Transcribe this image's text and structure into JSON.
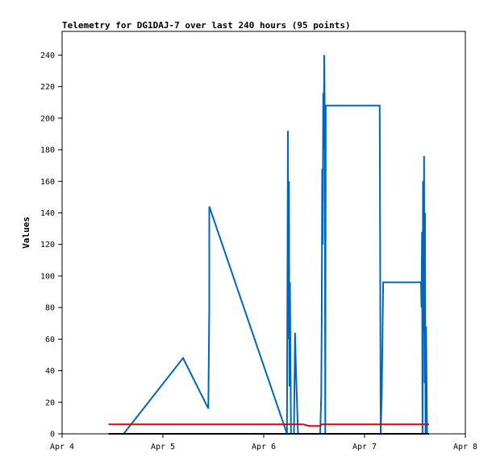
{
  "chart_data": {
    "type": "line",
    "title": "Telemetry for DG1DAJ-7 over last 240 hours (95 points)",
    "xlabel": "",
    "ylabel": "Values",
    "xlim": [
      0,
      4
    ],
    "ylim": [
      0,
      255
    ],
    "x_ticks": [
      {
        "value": 0,
        "label": "Apr 4"
      },
      {
        "value": 1,
        "label": "Apr 5"
      },
      {
        "value": 2,
        "label": "Apr 6"
      },
      {
        "value": 3,
        "label": "Apr 7"
      },
      {
        "value": 4,
        "label": "Apr 8"
      }
    ],
    "y_ticks": [
      0,
      20,
      40,
      60,
      80,
      100,
      120,
      140,
      160,
      180,
      200,
      220,
      240
    ],
    "grid": false,
    "legend": "none",
    "series": [
      {
        "color": "#0066bb",
        "points": [
          [
            0.61,
            0
          ],
          [
            1.2,
            48
          ],
          [
            1.45,
            16
          ],
          [
            1.46,
            80
          ],
          [
            1.46,
            144
          ],
          [
            2.22,
            2
          ],
          [
            2.23,
            0
          ],
          [
            2.24,
            192
          ],
          [
            2.245,
            60
          ],
          [
            2.25,
            160
          ],
          [
            2.255,
            30
          ],
          [
            2.26,
            96
          ],
          [
            2.27,
            0
          ],
          [
            2.3,
            0
          ],
          [
            2.31,
            64
          ],
          [
            2.32,
            40
          ],
          [
            2.34,
            0
          ],
          [
            2.39,
            0
          ],
          [
            2.4,
            0
          ],
          [
            2.56,
            0
          ],
          [
            2.57,
            24
          ],
          [
            2.575,
            72
          ],
          [
            2.58,
            168
          ],
          [
            2.585,
            120
          ],
          [
            2.59,
            216
          ],
          [
            2.595,
            180
          ],
          [
            2.6,
            240
          ],
          [
            2.605,
            207
          ],
          [
            2.61,
            0
          ],
          [
            2.615,
            208
          ],
          [
            3.15,
            208
          ],
          [
            3.155,
            104
          ],
          [
            3.16,
            0
          ],
          [
            3.17,
            24
          ],
          [
            3.18,
            72
          ],
          [
            3.185,
            96
          ],
          [
            3.56,
            96
          ],
          [
            3.565,
            80
          ],
          [
            3.57,
            128
          ],
          [
            3.575,
            0
          ],
          [
            3.58,
            160
          ],
          [
            3.585,
            64
          ],
          [
            3.59,
            176
          ],
          [
            3.595,
            32
          ],
          [
            3.6,
            140
          ],
          [
            3.605,
            0
          ],
          [
            3.61,
            68
          ],
          [
            3.62,
            0
          ]
        ]
      },
      {
        "color": "#e00000",
        "points": [
          [
            0.46,
            6
          ],
          [
            2.39,
            6
          ],
          [
            2.45,
            5
          ],
          [
            2.56,
            5
          ],
          [
            2.57,
            6
          ],
          [
            3.64,
            6
          ]
        ]
      },
      {
        "color": "#000000",
        "points": [
          [
            0.46,
            0
          ],
          [
            3.64,
            0
          ]
        ]
      }
    ]
  }
}
